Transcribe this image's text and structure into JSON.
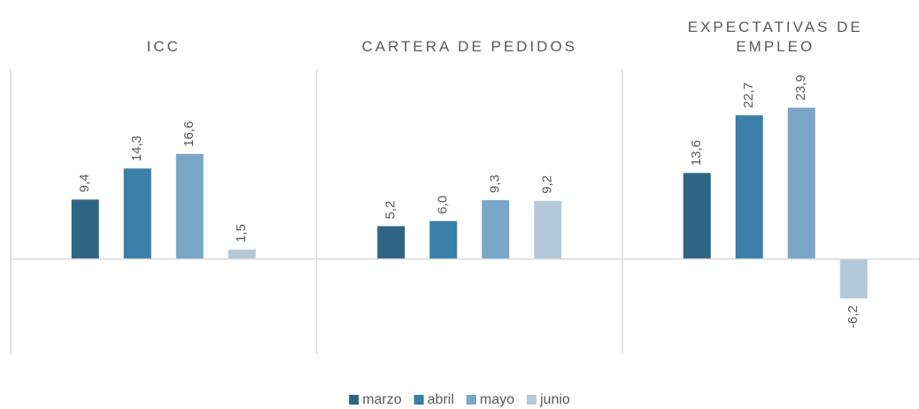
{
  "chart_data": {
    "type": "bar",
    "categories": [
      "ICC",
      "CARTERA DE PEDIDOS",
      "EXPECTATIVAS DE EMPLEO"
    ],
    "series": [
      {
        "name": "marzo",
        "color": "#2e6585",
        "values": [
          9.4,
          5.2,
          13.6
        ],
        "value_labels": [
          "9,4",
          "5,2",
          "13,6"
        ]
      },
      {
        "name": "abril",
        "color": "#3a7fa8",
        "values": [
          14.3,
          6.0,
          22.7
        ],
        "value_labels": [
          "14,3",
          "6,0",
          "22,7"
        ]
      },
      {
        "name": "mayo",
        "color": "#7aa6c7",
        "values": [
          16.6,
          9.3,
          23.9
        ],
        "value_labels": [
          "16,6",
          "9,3",
          "23,9"
        ]
      },
      {
        "name": "junio",
        "color": "#b4c9da",
        "values": [
          1.5,
          9.2,
          -6.2
        ],
        "value_labels": [
          "1,5",
          "9,2",
          "-6,2"
        ]
      }
    ],
    "ylim": [
      -15,
      30
    ],
    "legend": "bottom"
  }
}
